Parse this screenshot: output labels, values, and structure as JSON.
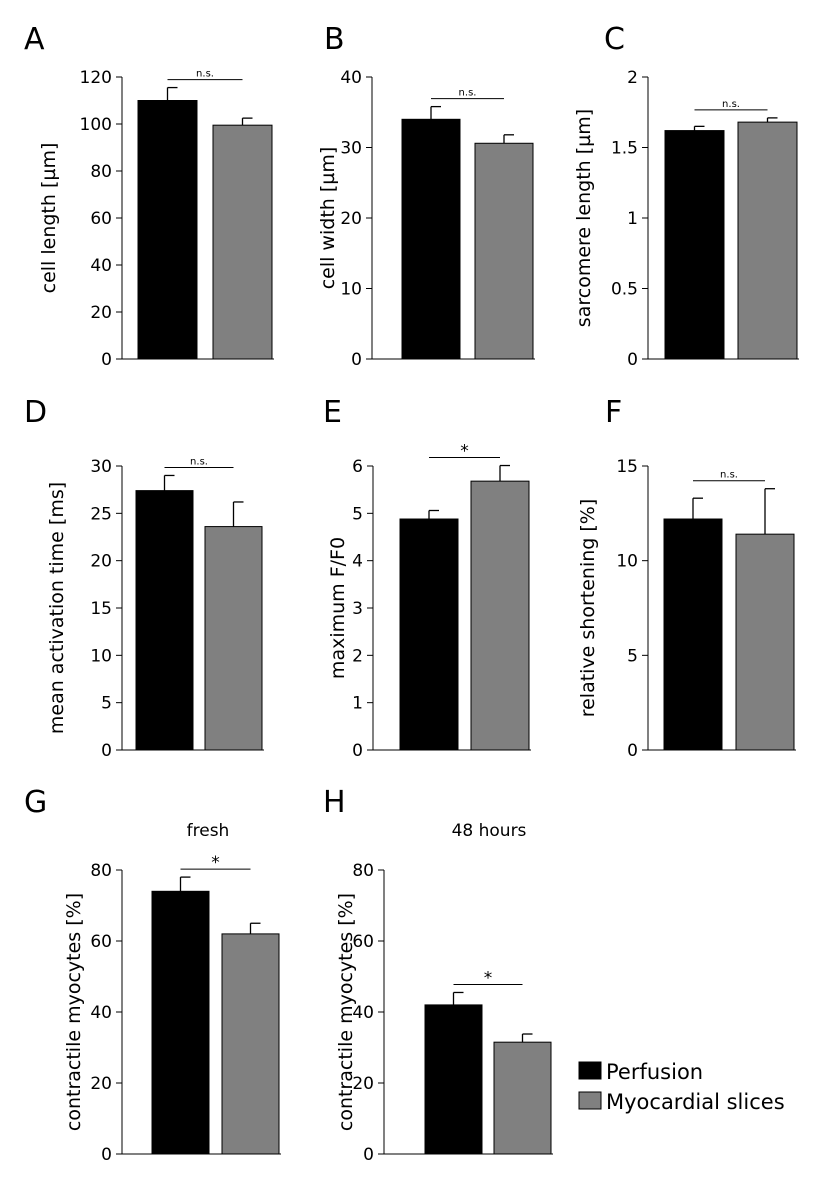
{
  "legend": {
    "entries": [
      {
        "label": "Perfusion",
        "color": "#000000"
      },
      {
        "label": "Myocardial slices",
        "color": "#808080"
      }
    ]
  },
  "chart_data": [
    {
      "panel": "A",
      "type": "bar",
      "title": "",
      "ylabel": "cell length [µm]",
      "ylim": [
        0,
        120
      ],
      "yticks": [
        0,
        20,
        40,
        60,
        80,
        100,
        120
      ],
      "ytick_labels": [
        "0",
        "20",
        "40",
        "60",
        "80",
        "100",
        "120"
      ],
      "categories": [
        "Perfusion",
        "Myocardial slices"
      ],
      "values": [
        110,
        99.5
      ],
      "errors": [
        5.5,
        3
      ],
      "significance": "n.s."
    },
    {
      "panel": "B",
      "type": "bar",
      "title": "",
      "ylabel": "cell width [µm]",
      "ylim": [
        0,
        40
      ],
      "yticks": [
        0,
        10,
        20,
        30,
        40
      ],
      "ytick_labels": [
        "0",
        "10",
        "20",
        "30",
        "40"
      ],
      "categories": [
        "Perfusion",
        "Myocardial slices"
      ],
      "values": [
        34,
        30.6
      ],
      "errors": [
        1.8,
        1.2
      ],
      "significance": "n.s."
    },
    {
      "panel": "C",
      "type": "bar",
      "title": "",
      "ylabel": "sarcomere length [µm]",
      "ylim": [
        0,
        2
      ],
      "yticks": [
        0,
        0.5,
        1,
        1.5,
        2
      ],
      "ytick_labels": [
        "0",
        "0.5",
        "1",
        "1.5",
        "2"
      ],
      "categories": [
        "Perfusion",
        "Myocardial slices"
      ],
      "values": [
        1.62,
        1.68
      ],
      "errors": [
        0.03,
        0.03
      ],
      "significance": "n.s."
    },
    {
      "panel": "D",
      "type": "bar",
      "title": "",
      "ylabel": "mean activation time [ms]",
      "ylim": [
        0,
        30
      ],
      "yticks": [
        0,
        5,
        10,
        15,
        20,
        25,
        30
      ],
      "ytick_labels": [
        "0",
        "5",
        "10",
        "15",
        "20",
        "25",
        "30"
      ],
      "categories": [
        "Perfusion",
        "Myocardial slices"
      ],
      "values": [
        27.4,
        23.6
      ],
      "errors": [
        1.6,
        2.6
      ],
      "significance": "n.s."
    },
    {
      "panel": "E",
      "type": "bar",
      "title": "",
      "ylabel": "maximum F/F0",
      "ylim": [
        0,
        6
      ],
      "yticks": [
        0,
        1,
        2,
        3,
        4,
        5,
        6
      ],
      "ytick_labels": [
        "0",
        "1",
        "2",
        "3",
        "4",
        "5",
        "6"
      ],
      "categories": [
        "Perfusion",
        "Myocardial slices"
      ],
      "values": [
        4.88,
        5.68
      ],
      "errors": [
        0.18,
        0.33
      ],
      "significance": "*"
    },
    {
      "panel": "F",
      "type": "bar",
      "title": "",
      "ylabel": "relative shortening [%]",
      "ylim": [
        0,
        15
      ],
      "yticks": [
        0,
        5,
        10,
        15
      ],
      "ytick_labels": [
        "0",
        "5",
        "10",
        "15"
      ],
      "categories": [
        "Perfusion",
        "Myocardial slices"
      ],
      "values": [
        12.2,
        11.4
      ],
      "errors": [
        1.1,
        2.4
      ],
      "significance": "n.s."
    },
    {
      "panel": "G",
      "type": "bar",
      "title": "fresh",
      "ylabel": "contractile myocytes [%]",
      "ylim": [
        0,
        80
      ],
      "yticks": [
        0,
        20,
        40,
        60,
        80
      ],
      "ytick_labels": [
        "0",
        "20",
        "40",
        "60",
        "80"
      ],
      "categories": [
        "Perfusion",
        "Myocardial slices"
      ],
      "values": [
        74,
        62
      ],
      "errors": [
        4,
        3
      ],
      "significance": "*"
    },
    {
      "panel": "H",
      "type": "bar",
      "title": "48 hours",
      "ylabel": "contractile myocytes [%]",
      "ylim": [
        0,
        80
      ],
      "yticks": [
        0,
        20,
        40,
        60,
        80
      ],
      "ytick_labels": [
        "0",
        "20",
        "40",
        "60",
        "80"
      ],
      "categories": [
        "Perfusion",
        "Myocardial slices"
      ],
      "values": [
        42,
        31.5
      ],
      "errors": [
        3.5,
        2.3
      ],
      "significance": "*"
    }
  ]
}
